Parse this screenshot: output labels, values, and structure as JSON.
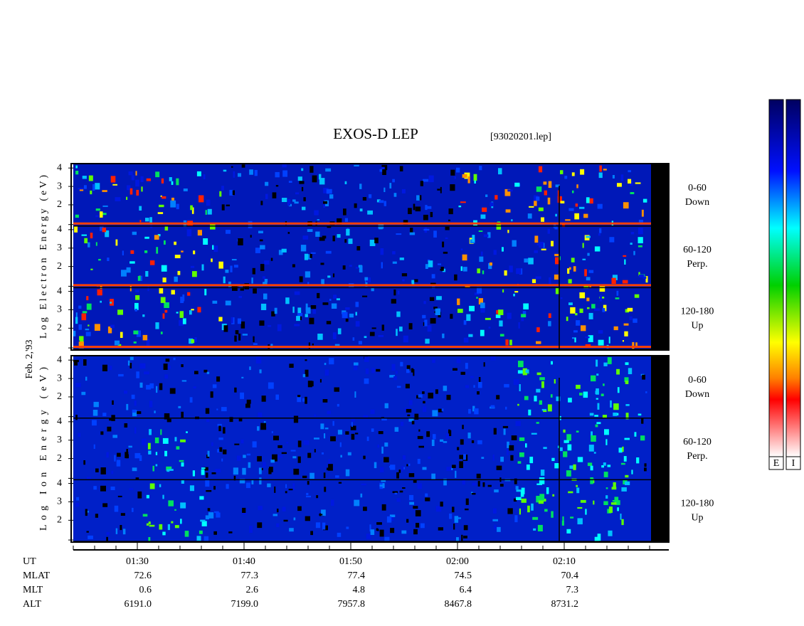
{
  "chart_data": {
    "type": "spectrogram",
    "title": "EXOS-D LEP",
    "subtitle": "[93020201.lep]",
    "date_label": "Feb. 2,'93",
    "groups": [
      {
        "ylabel": "Log Electron Energy (eV)",
        "panels": [
          {
            "label": [
              "0-60",
              "Down"
            ]
          },
          {
            "label": [
              "60-120",
              "Perp."
            ]
          },
          {
            "label": [
              "120-180",
              "Up"
            ]
          }
        ]
      },
      {
        "ylabel": "Log Ion Energy (eV)",
        "panels": [
          {
            "label": [
              "0-60",
              "Down"
            ]
          },
          {
            "label": [
              "60-120",
              "Perp."
            ]
          },
          {
            "label": [
              "120-180",
              "Up"
            ]
          }
        ]
      }
    ],
    "ylim": [
      0.85,
      4.2
    ],
    "yticks": [
      2,
      3,
      4
    ],
    "xlim": [
      24,
      79.8
    ],
    "xticks": [
      {
        "value": 30,
        "label": "01:30"
      },
      {
        "value": 40,
        "label": "01:40"
      },
      {
        "value": 50,
        "label": "01:50"
      },
      {
        "value": 60,
        "label": "02:00"
      },
      {
        "value": 70,
        "label": "02:10"
      }
    ],
    "info_rows": [
      {
        "name": "UT",
        "values": []
      },
      {
        "name": "MLAT",
        "values": [
          "72.6",
          "77.3",
          "77.4",
          "74.5",
          "70.4"
        ]
      },
      {
        "name": "MLT",
        "values": [
          "0.6",
          "2.6",
          "4.8",
          "6.4",
          "7.3"
        ]
      },
      {
        "name": "ALT",
        "values": [
          "6191.0",
          "7199.0",
          "7957.8",
          "8467.8",
          "8731.2"
        ]
      }
    ],
    "colorbars": [
      "E",
      "I"
    ]
  }
}
